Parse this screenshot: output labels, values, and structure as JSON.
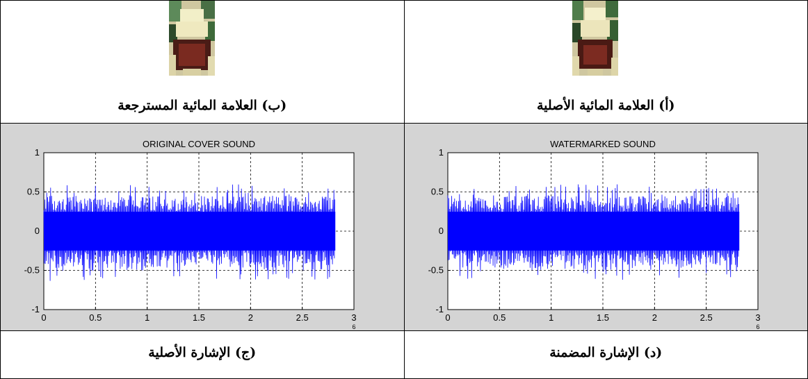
{
  "captions": {
    "top_left": "(ب) العلامة المائية المسترجعة",
    "top_right": "(أ) العلامة المائية الأصلية",
    "bottom_left": "(ج) الإشارة الأصلية",
    "bottom_right": "(د) الإشارة المضمنة"
  },
  "chart_data": [
    {
      "type": "line",
      "title": "ORIGINAL COVER SOUND",
      "xlim": [
        0,
        3
      ],
      "ylim": [
        -1,
        1
      ],
      "x_ticks": [
        "0",
        "0.5",
        "1",
        "1.5",
        "2",
        "2.5",
        "3"
      ],
      "y_ticks": [
        "1",
        "0.5",
        "0",
        "-0.5",
        "-1"
      ],
      "x_exponent": "6",
      "signal_x_range": [
        0,
        2.82
      ],
      "amplitude_band": [
        -0.45,
        0.45
      ],
      "peak_amplitude": [
        -0.6,
        0.6
      ],
      "grid": true,
      "line_color": "#0000ff"
    },
    {
      "type": "line",
      "title": "WATERMARKED SOUND",
      "xlim": [
        0,
        3
      ],
      "ylim": [
        -1,
        1
      ],
      "x_ticks": [
        "0",
        "0.5",
        "1",
        "1.5",
        "2",
        "2.5",
        "3"
      ],
      "y_ticks": [
        "1",
        "0.5",
        "0",
        "-0.5",
        "-1"
      ],
      "x_exponent": "6",
      "signal_x_range": [
        0,
        2.82
      ],
      "amplitude_band": [
        -0.45,
        0.45
      ],
      "peak_amplitude": [
        -0.6,
        0.6
      ],
      "grid": true,
      "line_color": "#0000ff"
    }
  ]
}
